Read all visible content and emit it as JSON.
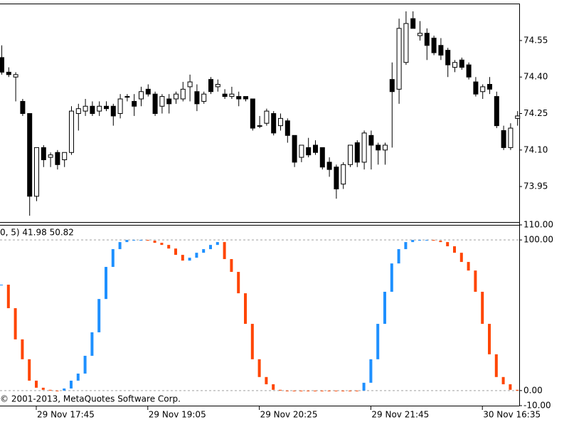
{
  "chart_data": [
    {
      "type": "candlestick",
      "x": [
        null,
        null,
        null,
        null,
        null,
        "29 Nov 17:45",
        null,
        null,
        null,
        null,
        null,
        null,
        null,
        null,
        null,
        null,
        null,
        null,
        null,
        null,
        null,
        "29 Nov 19:05",
        null,
        null,
        null,
        null,
        null,
        null,
        null,
        null,
        null,
        null,
        null,
        null,
        null,
        null,
        null,
        "29 Nov 20:25",
        null,
        null,
        null,
        null,
        null,
        null,
        null,
        null,
        null,
        null,
        null,
        null,
        null,
        null,
        null,
        "29 Nov 21:45",
        null,
        null,
        null,
        null,
        null,
        null,
        null,
        null,
        null,
        null,
        null,
        null,
        null,
        null,
        null,
        "30 Nov 16:35",
        null,
        null,
        null,
        null,
        null
      ],
      "open": [
        74.48,
        74.42,
        74.4,
        74.3,
        74.25,
        73.91,
        74.11,
        74.07,
        74.09,
        74.06,
        74.09,
        74.25,
        74.26,
        74.28,
        74.26,
        74.28,
        74.28,
        74.25,
        74.32,
        74.3,
        74.31,
        74.35,
        74.33,
        74.28,
        74.31,
        74.31,
        74.31,
        74.36,
        74.34,
        74.3,
        74.39,
        74.36,
        74.33,
        74.32,
        74.32,
        74.32,
        74.31,
        74.2,
        74.21,
        74.25,
        74.2,
        74.22,
        74.16,
        74.07,
        74.11,
        74.12,
        74.11,
        74.05,
        74.03,
        73.96,
        74.04,
        74.13,
        74.05,
        74.16,
        74.12,
        74.1,
        74.39,
        74.35,
        74.46,
        74.64,
        74.57,
        74.58,
        74.56,
        74.53,
        74.51,
        74.44,
        74.47,
        74.45,
        74.38,
        74.34,
        74.37,
        74.32,
        74.18,
        74.11,
        74.23
      ],
      "high": [
        74.53,
        74.44,
        74.42,
        74.31,
        74.25,
        74.11,
        74.12,
        74.09,
        74.1,
        74.09,
        74.28,
        74.29,
        74.31,
        74.3,
        74.3,
        74.3,
        74.29,
        74.33,
        74.33,
        74.33,
        74.36,
        74.37,
        74.34,
        74.33,
        74.33,
        74.34,
        74.38,
        74.41,
        74.37,
        74.34,
        74.4,
        74.39,
        74.35,
        74.36,
        74.34,
        74.32,
        74.31,
        74.24,
        74.27,
        74.26,
        74.25,
        74.23,
        74.16,
        74.12,
        74.15,
        74.14,
        74.11,
        74.07,
        74.04,
        74.05,
        74.12,
        74.14,
        74.18,
        74.18,
        74.13,
        74.13,
        74.46,
        74.64,
        74.67,
        74.67,
        74.63,
        74.6,
        74.57,
        74.56,
        74.52,
        74.47,
        74.48,
        74.46,
        74.4,
        74.37,
        74.4,
        74.34,
        74.2,
        74.21,
        74.26
      ],
      "low": [
        74.41,
        74.4,
        74.3,
        74.24,
        73.83,
        73.89,
        74.03,
        74.03,
        74.02,
        74.03,
        74.08,
        74.18,
        74.24,
        74.24,
        74.24,
        74.26,
        74.2,
        74.23,
        74.3,
        74.24,
        74.28,
        74.32,
        74.24,
        74.25,
        74.25,
        74.29,
        74.3,
        74.3,
        74.26,
        74.29,
        74.33,
        74.34,
        74.31,
        74.31,
        74.28,
        74.3,
        74.18,
        74.19,
        74.2,
        74.16,
        74.18,
        74.13,
        74.03,
        74.05,
        74.07,
        74.08,
        74.02,
        73.99,
        73.9,
        73.94,
        74.03,
        74.03,
        74.02,
        74.02,
        74.04,
        74.04,
        74.11,
        74.29,
        74.45,
        74.6,
        74.55,
        74.47,
        74.49,
        74.47,
        74.4,
        74.42,
        74.43,
        74.39,
        74.32,
        74.31,
        74.33,
        74.19,
        74.1,
        74.1,
        74.2
      ],
      "close": [
        74.42,
        74.41,
        74.41,
        74.25,
        73.91,
        74.11,
        74.06,
        74.08,
        74.04,
        74.09,
        74.26,
        74.27,
        74.28,
        74.25,
        74.28,
        74.27,
        74.24,
        74.31,
        74.32,
        74.28,
        74.34,
        74.33,
        74.25,
        74.32,
        74.29,
        74.33,
        74.35,
        74.38,
        74.29,
        74.33,
        74.34,
        74.37,
        74.32,
        74.33,
        74.31,
        74.31,
        74.19,
        74.2,
        74.26,
        74.17,
        74.23,
        74.16,
        74.05,
        74.12,
        74.08,
        74.09,
        74.03,
        74.02,
        73.94,
        74.04,
        74.12,
        74.05,
        74.17,
        74.12,
        74.1,
        74.12,
        74.34,
        74.6,
        74.62,
        74.6,
        74.58,
        74.53,
        74.5,
        74.49,
        74.45,
        74.46,
        74.44,
        74.4,
        74.33,
        74.36,
        74.35,
        74.2,
        74.11,
        74.19,
        74.24
      ],
      "up_color": "#ffffff",
      "down_color": "#000000",
      "outline_color": "#000000",
      "ylim": [
        73.804,
        74.702
      ],
      "yticks": [
        73.95,
        {
          "value": 74.1,
          "label": "74.10"
        },
        74.25,
        {
          "value": 74.4,
          "label": "74.40"
        },
        74.55
      ]
    },
    {
      "type": "color_line",
      "title": "0, 5) 41.98 50.82",
      "annotation": "© 2001-2013, MetaQuotes Software Corp.",
      "values": [
        70.3,
        54.7,
        34.0,
        20.8,
        6.6,
        1.9,
        0.5,
        0,
        0,
        1.4,
        6.6,
        11.3,
        23.1,
        38.7,
        60.8,
        82.1,
        93.9,
        98.6,
        100,
        100,
        100,
        99.5,
        98.1,
        96.7,
        94.3,
        90.1,
        86.3,
        88.2,
        91.5,
        93.9,
        96.7,
        98.6,
        87.3,
        78.8,
        64.6,
        44.3,
        20.8,
        9.0,
        4.2,
        0.5,
        0,
        0,
        0,
        0,
        0,
        0,
        0,
        0,
        0,
        0,
        0,
        0,
        5.2,
        20.8,
        44.3,
        65.6,
        84.4,
        93.9,
        98.6,
        100,
        100,
        100,
        99.5,
        98.6,
        95.8,
        91.5,
        85.4,
        79.7,
        65.6,
        44.3,
        24.1,
        9.0,
        4.2,
        0.5,
        0
      ],
      "up_color": "#1e90ff",
      "down_color": "#ff4500",
      "ylim": [
        -10,
        110
      ],
      "yticks": [
        {
          "value": 110,
          "label": "110.00"
        },
        {
          "value": 100,
          "label": "100.00"
        },
        {
          "value": 0,
          "label": "0.00"
        },
        {
          "value": -10,
          "label": "-10.00"
        }
      ],
      "levels": [
        100,
        0
      ]
    }
  ]
}
